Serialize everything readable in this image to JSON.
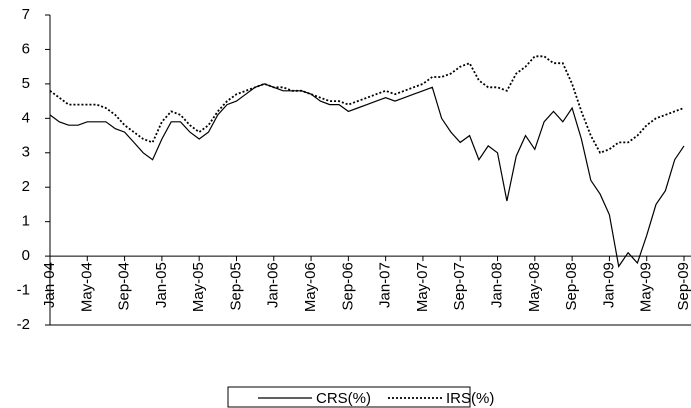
{
  "chart_data": {
    "type": "line",
    "categories": [
      "Jan-04",
      null,
      null,
      null,
      "May-04",
      null,
      null,
      null,
      "Sep-04",
      null,
      null,
      null,
      "Jan-05",
      null,
      null,
      null,
      "May-05",
      null,
      null,
      null,
      "Sep-05",
      null,
      null,
      null,
      "Jan-06",
      null,
      null,
      null,
      "May-06",
      null,
      null,
      null,
      "Sep-06",
      null,
      null,
      null,
      "Jan-07",
      null,
      null,
      null,
      "May-07",
      null,
      null,
      null,
      "Sep-07",
      null,
      null,
      null,
      "Jan-08",
      null,
      null,
      null,
      "May-08",
      null,
      null,
      null,
      "Sep-08",
      null,
      null,
      null,
      "Jan-09",
      null,
      null,
      null,
      "May-09",
      null,
      null,
      null,
      "Sep-09"
    ],
    "series": [
      {
        "name": "CRS(%)",
        "color": "#000000",
        "dash": "none",
        "values": [
          4.1,
          3.9,
          3.8,
          3.8,
          3.9,
          3.9,
          3.9,
          3.7,
          3.6,
          3.3,
          3.0,
          2.8,
          3.4,
          3.9,
          3.9,
          3.6,
          3.4,
          3.6,
          4.1,
          4.4,
          4.5,
          4.7,
          4.9,
          5.0,
          4.9,
          4.8,
          4.8,
          4.8,
          4.7,
          4.5,
          4.4,
          4.4,
          4.2,
          4.3,
          4.4,
          4.5,
          4.6,
          4.5,
          4.6,
          4.7,
          4.8,
          4.9,
          4.0,
          3.6,
          3.3,
          3.5,
          2.8,
          3.2,
          3.0,
          1.6,
          2.9,
          3.5,
          3.1,
          3.9,
          4.2,
          3.9,
          4.3,
          3.4,
          2.2,
          1.8,
          1.2,
          -0.3,
          0.1,
          -0.2,
          0.6,
          1.5,
          1.9,
          2.8,
          3.2
        ]
      },
      {
        "name": "IRS(%)",
        "color": "#000000",
        "dash": "2,2",
        "values": [
          4.8,
          4.6,
          4.4,
          4.4,
          4.4,
          4.4,
          4.3,
          4.1,
          3.8,
          3.6,
          3.4,
          3.3,
          3.9,
          4.2,
          4.1,
          3.8,
          3.6,
          3.8,
          4.2,
          4.5,
          4.7,
          4.8,
          4.9,
          5.0,
          4.9,
          4.9,
          4.8,
          4.8,
          4.7,
          4.6,
          4.5,
          4.5,
          4.4,
          4.5,
          4.6,
          4.7,
          4.8,
          4.7,
          4.8,
          4.9,
          5.0,
          5.2,
          5.2,
          5.3,
          5.5,
          5.6,
          5.1,
          4.9,
          4.9,
          4.8,
          5.3,
          5.5,
          5.8,
          5.8,
          5.6,
          5.6,
          5.0,
          4.2,
          3.5,
          3.0,
          3.1,
          3.3,
          3.3,
          3.5,
          3.8,
          4.0,
          4.1,
          4.2,
          4.3
        ]
      }
    ],
    "ylim": [
      -2,
      7
    ],
    "yticks": [
      -2,
      -1,
      0,
      1,
      2,
      3,
      4,
      5,
      6,
      7
    ],
    "grid": false,
    "legend": "bottom"
  }
}
